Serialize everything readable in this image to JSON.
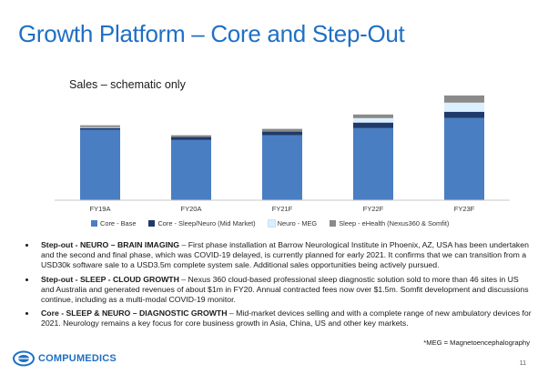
{
  "slide": {
    "title": "Growth Platform – Core and Step-Out",
    "page_number": "11",
    "footnote": "*MEG = Magnetoencephalography"
  },
  "logo": {
    "text": "COMPUMEDICS",
    "mark_icon": "compumedics-logo-icon",
    "color": "#1f6fc5"
  },
  "chart_data": {
    "type": "bar",
    "stacked": true,
    "title": "",
    "subtitle": "Sales – schematic only",
    "xlabel": "",
    "ylabel": "",
    "yaxis_visible": false,
    "grid": false,
    "legend_placement": "bottom",
    "categories": [
      "FY19A",
      "FY20A",
      "FY21F",
      "FY22F",
      "FY23F"
    ],
    "ylim": [
      0,
      125
    ],
    "series": [
      {
        "name": "Core - Base",
        "color": "#4a7ec2",
        "values": [
          78,
          67,
          72,
          80,
          91
        ]
      },
      {
        "name": "Core - Sleep/Neuro (Mid Market)",
        "color": "#1f3a6b",
        "values": [
          2,
          3,
          4,
          6,
          7
        ]
      },
      {
        "name": "Neuro - MEG",
        "color": "#dcefff",
        "values": [
          1,
          0,
          0,
          5,
          10
        ]
      },
      {
        "name": "Sleep - eHealth (Nexus360 & Somfit)",
        "color": "#8a8a8a",
        "values": [
          2,
          2,
          3,
          4,
          8
        ]
      }
    ]
  },
  "bullets": [
    {
      "lead": "Step-out  - NEURO – BRAIN IMAGING",
      "text": " – First phase installation at Barrow Neurological Institute in Phoenix,  AZ, USA has been undertaken and the second and final phase, which was COVID-19 delayed, is currently planned for early 2021.  It confirms that we can transition from a USD30k software sale to a USD3.5m complete system sale.  Additional sales opportunities being actively pursued."
    },
    {
      "lead": "Step-out - SLEEP - CLOUD GROWTH",
      "text": " – Nexus 360 cloud-based professional sleep diagnostic solution sold to more than 46 sites in US and Australia and generated  revenues of about $1m in FY20.  Annual contracted fees now over $1.5m.  Somfit development and discussions continue, including as a multi-modal COVID-19 monitor."
    },
    {
      "lead": "Core  - SLEEP & NEURO – DIAGNOSTIC GROWTH",
      "text": " – Mid-market devices selling and with a complete range of new ambulatory devices for 2021.  Neurology remains a key focus for core business growth in Asia, China, US and other key markets."
    }
  ]
}
